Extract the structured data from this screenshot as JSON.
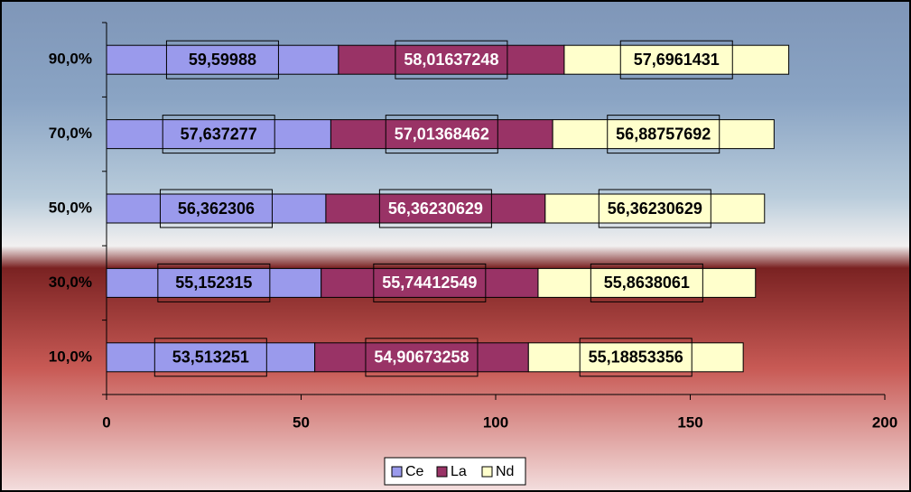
{
  "chart_data": {
    "type": "stacked-bar-horizontal",
    "categories": [
      "90,0%",
      "70,0%",
      "50,0%",
      "30,0%",
      "10,0%"
    ],
    "series": [
      {
        "name": "Ce",
        "color": "#9a9aec",
        "label_color": "#000000",
        "values": [
          59.59988,
          57.637277,
          56.362306,
          55.152315,
          53.513251
        ],
        "value_labels": [
          "59,59988",
          "57,637277",
          "56,362306",
          "55,152315",
          "53,513251"
        ]
      },
      {
        "name": "La",
        "color": "#993366",
        "label_color": "#ffffff",
        "values": [
          58.01637248,
          57.01368462,
          56.36230629,
          55.74412549,
          54.90673258
        ],
        "value_labels": [
          "58,01637248",
          "57,01368462",
          "56,36230629",
          "55,74412549",
          "54,90673258"
        ]
      },
      {
        "name": "Nd",
        "color": "#ffffcc",
        "label_color": "#000000",
        "values": [
          57.6961431,
          56.88757692,
          56.36230629,
          55.8638061,
          55.18853356
        ],
        "value_labels": [
          "57,6961431",
          "56,88757692",
          "56,36230629",
          "55,8638061",
          "55,18853356"
        ]
      }
    ],
    "xlim": [
      0,
      200
    ],
    "xticks": [
      0,
      50,
      100,
      150,
      200
    ],
    "legend": "bottom"
  }
}
